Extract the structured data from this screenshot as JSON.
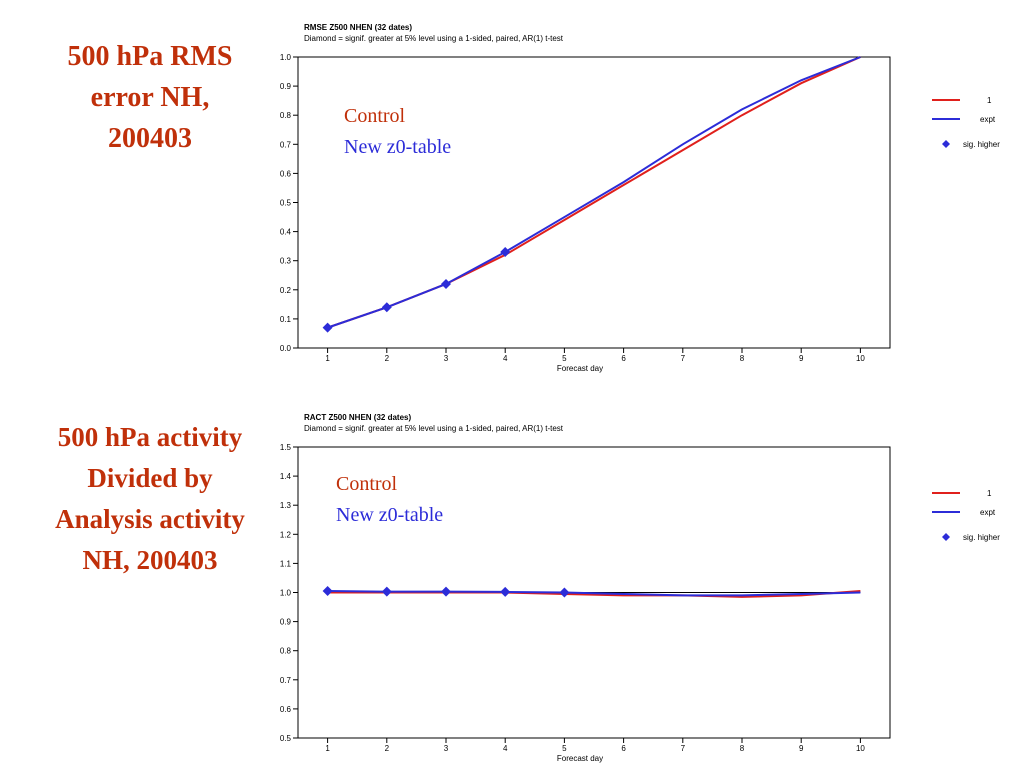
{
  "slide": {
    "left_titles": [
      "500 hPa RMS\nerror NH,\n200403",
      "500 hPa activity\nDivided by\nAnalysis activity\nNH, 200403"
    ]
  },
  "colors": {
    "control": "#e0201c",
    "new": "#2c2cd8",
    "title": "#c0300a"
  },
  "chart_data": [
    {
      "type": "line",
      "header_line1": "RMSE Z500 NHEN (32 dates)",
      "header_line2": "Diamond = signif. greater at 5% level using a 1-sided, paired, AR(1) t-test",
      "xlabel": "Forecast day",
      "ylabel": "",
      "x": [
        1,
        2,
        3,
        4,
        5,
        6,
        7,
        8,
        9,
        10
      ],
      "xlim": [
        0.5,
        10.5
      ],
      "ylim": [
        0.0,
        1.0
      ],
      "yticks": [
        "0.0",
        "0.1",
        "0.2",
        "0.3",
        "0.4",
        "0.5",
        "0.6",
        "0.7",
        "0.8",
        "0.9",
        "1.0"
      ],
      "inset_legend": [
        "Control",
        "New z0-table"
      ],
      "legend": [
        "1",
        "expt",
        "sig. higher"
      ],
      "legend_position": "right",
      "series": [
        {
          "name": "1",
          "color": "#e0201c",
          "values": [
            0.07,
            0.14,
            0.22,
            0.32,
            0.44,
            0.56,
            0.68,
            0.8,
            0.91,
            1.0
          ]
        },
        {
          "name": "expt",
          "color": "#2c2cd8",
          "values": [
            0.07,
            0.14,
            0.22,
            0.33,
            0.45,
            0.57,
            0.7,
            0.82,
            0.92,
            1.0
          ]
        }
      ],
      "sig_higher": {
        "x": [
          1,
          2,
          3,
          4
        ],
        "y": [
          0.07,
          0.14,
          0.22,
          0.33
        ]
      }
    },
    {
      "type": "line",
      "header_line1": "RACT Z500 NHEN (32 dates)",
      "header_line2": "Diamond = signif. greater at 5% level using a 1-sided, paired, AR(1) t-test",
      "xlabel": "Forecast day",
      "ylabel": "",
      "x": [
        1,
        2,
        3,
        4,
        5,
        6,
        7,
        8,
        9,
        10
      ],
      "xlim": [
        0.5,
        10.5
      ],
      "ylim": [
        0.5,
        1.5
      ],
      "yticks": [
        "0.5",
        "0.6",
        "0.7",
        "0.8",
        "0.9",
        "1.0",
        "1.1",
        "1.2",
        "1.3",
        "1.4",
        "1.5"
      ],
      "inset_legend": [
        "Control",
        "New z0-table"
      ],
      "legend": [
        "1",
        "expt",
        "sig. higher"
      ],
      "legend_position": "right",
      "series": [
        {
          "name": "1",
          "color": "#e0201c",
          "values": [
            1.0,
            1.0,
            1.0,
            1.0,
            0.995,
            0.99,
            0.99,
            0.985,
            0.99,
            1.005
          ]
        },
        {
          "name": "expt",
          "color": "#2c2cd8",
          "values": [
            1.005,
            1.003,
            1.003,
            1.002,
            1.0,
            0.995,
            0.99,
            0.99,
            0.995,
            1.0
          ]
        }
      ],
      "sig_higher": {
        "x": [
          1,
          2,
          3,
          4,
          5
        ],
        "y": [
          1.005,
          1.003,
          1.003,
          1.002,
          1.0
        ]
      }
    }
  ]
}
